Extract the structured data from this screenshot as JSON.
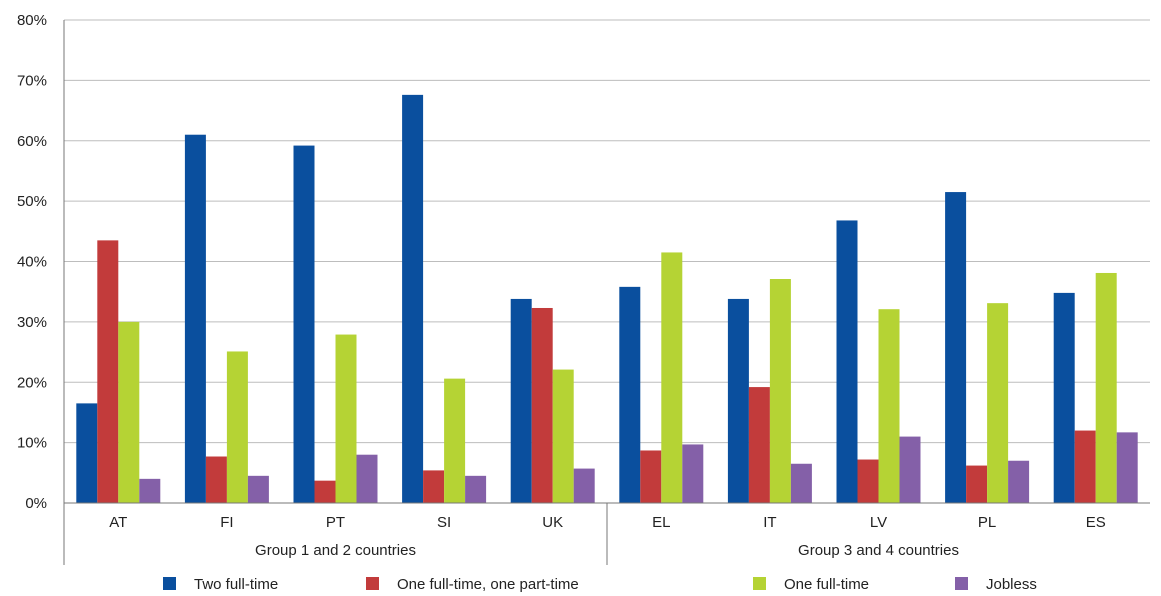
{
  "chart_data": {
    "type": "bar",
    "title": "",
    "xlabel": "",
    "ylabel": "",
    "ylim": [
      0,
      80
    ],
    "y_ticks": [
      "0%",
      "10%",
      "20%",
      "30%",
      "40%",
      "50%",
      "60%",
      "70%",
      "80%"
    ],
    "grid": true,
    "legend_position": "bottom",
    "categories": [
      "AT",
      "FI",
      "PT",
      "SI",
      "UK",
      "EL",
      "IT",
      "LV",
      "PL",
      "ES"
    ],
    "groups": [
      {
        "label": "Group 1 and 2 countries",
        "categories": [
          "AT",
          "FI",
          "PT",
          "SI",
          "UK"
        ]
      },
      {
        "label": "Group 3 and 4 countries",
        "categories": [
          "EL",
          "IT",
          "LV",
          "PL",
          "ES"
        ]
      }
    ],
    "series": [
      {
        "name": "Two full-time",
        "color": "#0a4f9e",
        "values": [
          16.5,
          61,
          59.2,
          67.6,
          33.8,
          35.8,
          33.8,
          46.8,
          51.5,
          34.8
        ]
      },
      {
        "name": "One full-time, one part-time",
        "color": "#c23b3b",
        "values": [
          43.5,
          7.7,
          3.7,
          5.4,
          32.3,
          8.7,
          19.2,
          7.2,
          6.2,
          12
        ]
      },
      {
        "name": "One full-time",
        "color": "#b5d334",
        "values": [
          30,
          25.1,
          27.9,
          20.6,
          22.1,
          41.5,
          37.1,
          32.1,
          33.1,
          38.1
        ]
      },
      {
        "name": "Jobless",
        "color": "#8460a8",
        "values": [
          4,
          4.5,
          8,
          4.5,
          5.7,
          9.7,
          6.5,
          11,
          7,
          11.7
        ]
      }
    ]
  }
}
